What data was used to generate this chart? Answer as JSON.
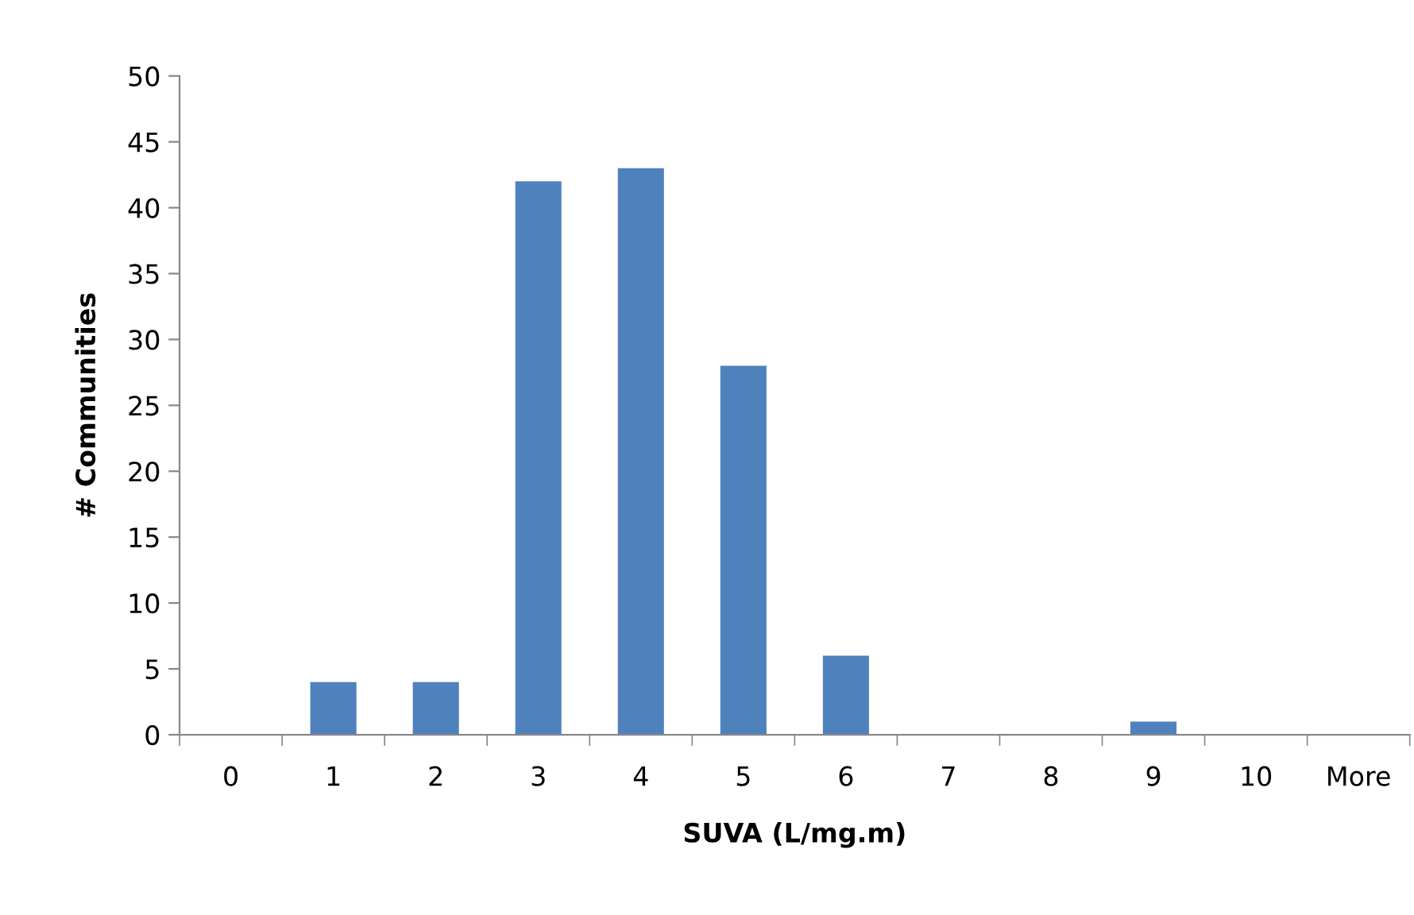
{
  "chart_data": {
    "type": "bar",
    "xlabel": "SUVA (L/mg.m)",
    "ylabel": "# Communities",
    "categories": [
      "0",
      "1",
      "2",
      "3",
      "4",
      "5",
      "6",
      "7",
      "8",
      "9",
      "10",
      "More"
    ],
    "values": [
      0,
      4,
      4,
      42,
      43,
      28,
      6,
      0,
      0,
      1,
      0,
      0
    ],
    "color": "#4f81bd",
    "ylim": [
      0,
      50
    ],
    "yticks": [
      0,
      5,
      10,
      15,
      20,
      25,
      30,
      35,
      40,
      45,
      50
    ],
    "grid": false,
    "legend": false
  }
}
